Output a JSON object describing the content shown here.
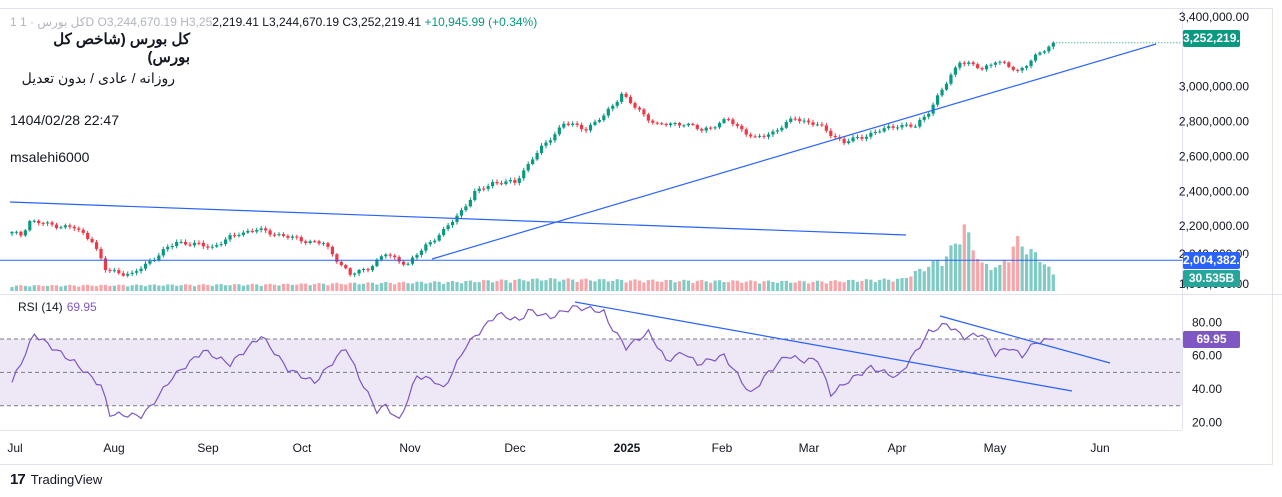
{
  "header": {
    "ohlc_prefix_faded": "1 کل بورس  ·  1D  O3,244,670.19  H3,25",
    "ohlc_rest": "2,219.41  L3,244,670.19  C3,252,219.41",
    "change": "+10,945.99 (+0.34%)"
  },
  "legend": {
    "title": "کل بورس (شاخص کل بورس)",
    "subtitle": "روزانه / عادی / بدون تعدیل",
    "datetime": "1404/02/28 22:47",
    "author": "msalehi6000"
  },
  "rsi_label": {
    "name": "RSI (14)",
    "value": "69.95"
  },
  "price_tags": {
    "last_price": "3,252,219.41",
    "hline_price": "2,004,382.46",
    "volume": "30.535B",
    "rsi": "69.95"
  },
  "footer": {
    "brand": "TradingView"
  },
  "colors": {
    "up": "#089981",
    "down": "#f23645",
    "line": "#2962ff",
    "rsi": "#7e57c2",
    "vol_up": "#80cbc4",
    "vol_down": "#f7a5a8",
    "rsi_band": "#ede7f6"
  },
  "chart_data": [
    {
      "type": "candlestick",
      "title": "کل بورس (شاخص کل بورس)",
      "x_tick_labels": [
        "Jul",
        "Aug",
        "Sep",
        "Oct",
        "Nov",
        "Dec",
        "2025",
        "Feb",
        "Mar",
        "Apr",
        "May",
        "Jun"
      ],
      "y_tick_labels": [
        "1,900,000.00",
        "2,040,000.00",
        "2,200,000.00",
        "2,400,000.00",
        "2,600,000.00",
        "2,800,000.00",
        "3,000,000.00",
        "3,400,000.00"
      ],
      "y_ticks": [
        1900000,
        2040000,
        2200000,
        2400000,
        2600000,
        2800000,
        3000000,
        3400000
      ],
      "ylim": [
        1880000,
        3420000
      ],
      "close_waypoints": [
        [
          0,
          2160000
        ],
        [
          2,
          2150000
        ],
        [
          4,
          2230000
        ],
        [
          8,
          2210000
        ],
        [
          14,
          2190000
        ],
        [
          18,
          2120000
        ],
        [
          21,
          1950000
        ],
        [
          27,
          1920000
        ],
        [
          31,
          2000000
        ],
        [
          37,
          2110000
        ],
        [
          45,
          2080000
        ],
        [
          51,
          2160000
        ],
        [
          55,
          2180000
        ],
        [
          65,
          2120000
        ],
        [
          70,
          2100000
        ],
        [
          76,
          1920000
        ],
        [
          80,
          1960000
        ],
        [
          84,
          2040000
        ],
        [
          89,
          1980000
        ],
        [
          93,
          2090000
        ],
        [
          97,
          2170000
        ],
        [
          101,
          2290000
        ],
        [
          104,
          2390000
        ],
        [
          108,
          2450000
        ],
        [
          113,
          2450000
        ],
        [
          117,
          2590000
        ],
        [
          124,
          2790000
        ],
        [
          129,
          2760000
        ],
        [
          133,
          2830000
        ],
        [
          137,
          2960000
        ],
        [
          140,
          2880000
        ],
        [
          145,
          2780000
        ],
        [
          151,
          2790000
        ],
        [
          155,
          2750000
        ],
        [
          161,
          2810000
        ],
        [
          167,
          2700000
        ],
        [
          171,
          2740000
        ],
        [
          176,
          2820000
        ],
        [
          181,
          2780000
        ],
        [
          187,
          2680000
        ],
        [
          193,
          2730000
        ],
        [
          199,
          2780000
        ],
        [
          203,
          2770000
        ],
        [
          206,
          2860000
        ],
        [
          210,
          3020000
        ],
        [
          213,
          3150000
        ],
        [
          218,
          3100000
        ],
        [
          221,
          3150000
        ],
        [
          226,
          3090000
        ],
        [
          230,
          3170000
        ],
        [
          234,
          3252219
        ]
      ],
      "volume_waypoints": [
        [
          0,
          4
        ],
        [
          60,
          5
        ],
        [
          100,
          7
        ],
        [
          120,
          9
        ],
        [
          140,
          8
        ],
        [
          180,
          7
        ],
        [
          200,
          9
        ],
        [
          210,
          26
        ],
        [
          214,
          48
        ],
        [
          218,
          20
        ],
        [
          222,
          18
        ],
        [
          226,
          38
        ],
        [
          232,
          22
        ],
        [
          234,
          12
        ]
      ],
      "hlines": [
        2004382.46
      ],
      "last": {
        "open": 3244670.19,
        "high": 3252219.41,
        "low": 3244670.19,
        "close": 3252219.41,
        "change": 10945.99,
        "change_pct": 0.34
      },
      "volume_last": "30.535B"
    },
    {
      "type": "line",
      "title": "RSI (14)",
      "y_tick_labels": [
        "20.00",
        "40.00",
        "60.00",
        "80.00"
      ],
      "y_ticks": [
        20,
        40,
        60,
        80
      ],
      "ylim": [
        20,
        80
      ],
      "bands": [
        30,
        50,
        70
      ],
      "waypoints": [
        [
          0,
          44
        ],
        [
          5,
          73
        ],
        [
          9,
          65
        ],
        [
          14,
          56
        ],
        [
          20,
          42
        ],
        [
          22,
          25
        ],
        [
          29,
          24
        ],
        [
          31,
          29
        ],
        [
          36,
          47
        ],
        [
          43,
          63
        ],
        [
          49,
          55
        ],
        [
          56,
          72
        ],
        [
          62,
          52
        ],
        [
          68,
          44
        ],
        [
          75,
          65
        ],
        [
          78,
          47
        ],
        [
          82,
          27
        ],
        [
          84,
          30
        ],
        [
          87,
          21
        ],
        [
          91,
          48
        ],
        [
          95,
          45
        ],
        [
          97,
          40
        ],
        [
          102,
          66
        ],
        [
          109,
          85
        ],
        [
          114,
          81
        ],
        [
          116,
          87
        ],
        [
          121,
          83
        ],
        [
          126,
          89
        ],
        [
          130,
          88
        ],
        [
          133,
          86
        ],
        [
          134,
          80
        ],
        [
          138,
          65
        ],
        [
          143,
          74
        ],
        [
          145,
          66
        ],
        [
          147,
          57
        ],
        [
          151,
          62
        ],
        [
          154,
          55
        ],
        [
          160,
          60
        ],
        [
          166,
          37
        ],
        [
          170,
          50
        ],
        [
          174,
          60
        ],
        [
          178,
          57
        ],
        [
          181,
          58
        ],
        [
          184,
          37
        ],
        [
          188,
          45
        ],
        [
          193,
          53
        ],
        [
          199,
          47
        ],
        [
          203,
          62
        ],
        [
          206,
          74
        ],
        [
          210,
          79
        ],
        [
          214,
          71
        ],
        [
          218,
          73
        ],
        [
          221,
          61
        ],
        [
          224,
          65
        ],
        [
          227,
          60
        ],
        [
          230,
          68
        ],
        [
          234,
          69.95
        ]
      ],
      "last_value": 69.95
    }
  ]
}
